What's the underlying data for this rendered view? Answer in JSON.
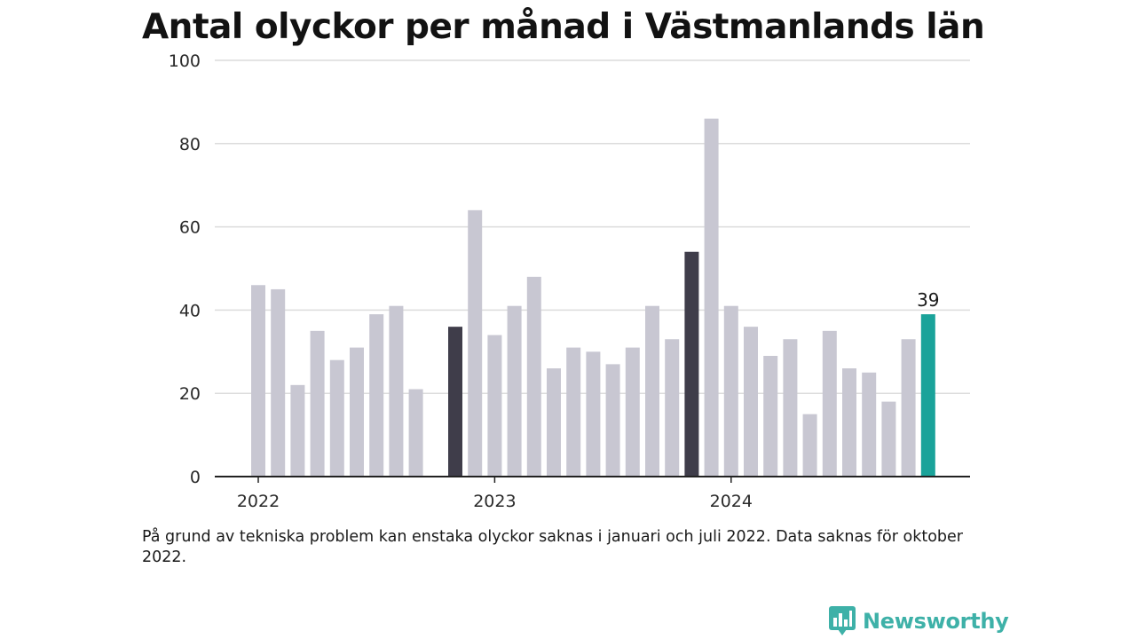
{
  "title": "Antal olyckor per månad i Västmanlands län",
  "footnote": "På grund av tekniska problem kan enstaka olyckor saknas i januari och juli 2022. Data saknas för oktober 2022.",
  "brand": {
    "name": "Newsworthy",
    "icon": "newsworthy-chart-logo-icon",
    "color": "#3eb1a8"
  },
  "colors": {
    "regular_bar": "#c8c7d2",
    "january_bar": "#3f3d4a",
    "latest_bar": "#1aa39a",
    "gridline": "#dcdcdc",
    "axis": "#222222"
  },
  "chart_data": {
    "type": "bar",
    "title": "Antal olyckor per månad i Västmanlands län",
    "xlabel": "",
    "ylabel": "",
    "ylim": [
      0,
      100
    ],
    "y_ticks": [
      0,
      20,
      40,
      60,
      80,
      100
    ],
    "grid": true,
    "x_tick_labels": [
      "2022",
      "2023",
      "2024"
    ],
    "x_tick_months": [
      "2022-01",
      "2023-01",
      "2024-01"
    ],
    "categories": [
      "2022-01",
      "2022-02",
      "2022-03",
      "2022-04",
      "2022-05",
      "2022-06",
      "2022-07",
      "2022-08",
      "2022-09",
      "2022-10",
      "2022-11",
      "2022-12",
      "2023-01",
      "2023-02",
      "2023-03",
      "2023-04",
      "2023-05",
      "2023-06",
      "2023-07",
      "2023-08",
      "2023-09",
      "2023-10",
      "2023-11",
      "2023-12",
      "2024-01",
      "2024-02",
      "2024-03",
      "2024-04",
      "2024-05",
      "2024-06",
      "2024-07",
      "2024-08",
      "2024-09",
      "2024-10",
      "2024-11",
      "2024-12"
    ],
    "values": [
      46,
      45,
      22,
      35,
      28,
      31,
      39,
      41,
      21,
      null,
      36,
      64,
      34,
      41,
      48,
      26,
      31,
      30,
      27,
      31,
      41,
      33,
      54,
      86,
      41,
      36,
      29,
      33,
      15,
      35,
      26,
      25,
      18,
      33,
      39,
      null
    ],
    "highlight_dark": [
      "2022-11",
      "2023-11"
    ],
    "highlight_latest": "2024-11",
    "annotations": [
      {
        "category": "2024-11",
        "text": "39"
      }
    ]
  }
}
